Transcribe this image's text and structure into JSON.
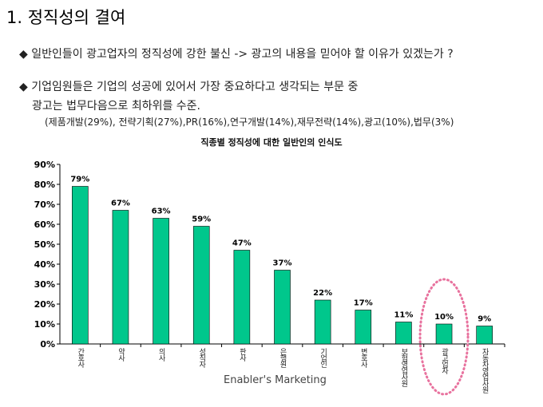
{
  "header": {
    "title": "1. 정직성의 결여"
  },
  "bullets": [
    {
      "icon": "diamond-bullet",
      "text": "일반인들이 광고업자의 정직성에 강한 불신 -> 광고의 내용을 믿어야 할 이유가 있겠는가 ?"
    },
    {
      "icon": "diamond-bullet",
      "text": "기업임원들은 기업의 성공에 있어서 가장 중요하다고 생각되는 부문 중",
      "text2": "광고는 법무다음으로 최하위를 수준.",
      "note": "(제품개발(29%), 전략기획(27%),PR(16%),연구개발(14%),재무전략(14%),광고(10%),법무(3%)"
    }
  ],
  "bullet_symbol": "◆",
  "footer": "Enabler's Marketing",
  "chart_data": {
    "type": "bar",
    "title": "직종별 정직성에 대한 일반인의 인식도",
    "categories": [
      "간호사",
      "약사",
      "의사",
      "성직자",
      "판사",
      "은행원",
      "기업인",
      "변호사",
      "보험영업사원",
      "광고업자",
      "자동차영업사원"
    ],
    "values": [
      79,
      67,
      63,
      59,
      47,
      37,
      22,
      17,
      11,
      10,
      9
    ],
    "data_labels": [
      "79%",
      "67%",
      "63%",
      "59%",
      "47%",
      "37%",
      "22%",
      "17%",
      "11%",
      "10%",
      "9%"
    ],
    "yticks": [
      "0%",
      "10%",
      "20%",
      "30%",
      "40%",
      "50%",
      "60%",
      "70%",
      "80%",
      "90%"
    ],
    "ylim": [
      0,
      90
    ],
    "xlabel": "",
    "ylabel": "",
    "grid": false,
    "highlight": "광고업자",
    "bar_color": "#00c78c",
    "highlight_color": "#e8729e"
  }
}
